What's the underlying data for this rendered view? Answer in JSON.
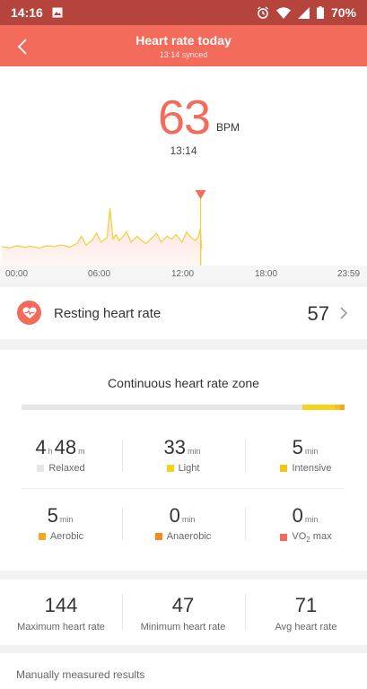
{
  "status_bar": {
    "time": "14:16",
    "battery": "70%"
  },
  "header": {
    "title": "Heart rate today",
    "subtitle": "13:14 synced"
  },
  "current": {
    "value": "63",
    "unit": "BPM",
    "time": "13:14"
  },
  "chart_data": {
    "type": "line",
    "x_ticks": [
      "00:00",
      "06:00",
      "12:00",
      "18:00",
      "23:59"
    ],
    "xlabel": "",
    "ylabel": "",
    "x_unit": "hours",
    "xlim": [
      0,
      24
    ],
    "ylim": [
      40,
      150
    ],
    "series": [
      {
        "x": [
          0,
          0.5,
          1.0,
          1.5,
          2.0,
          2.5,
          3.0,
          3.5,
          4.0,
          4.5,
          5.0,
          5.3,
          5.6,
          6.0,
          6.3,
          6.6,
          7.0,
          7.2,
          7.4,
          7.6,
          7.8,
          8.0,
          8.3,
          8.6,
          9.0,
          9.3,
          9.6,
          10.0,
          10.3,
          10.6,
          11.0,
          11.3,
          11.6,
          12.0,
          12.3,
          12.6,
          12.9,
          13.1,
          13.2,
          13.3
        ],
        "y": [
          66,
          64,
          67,
          65,
          66,
          64,
          67,
          66,
          68,
          65,
          70,
          80,
          68,
          74,
          84,
          72,
          78,
          118,
          76,
          82,
          74,
          78,
          86,
          72,
          80,
          74,
          70,
          78,
          84,
          72,
          80,
          76,
          82,
          72,
          86,
          78,
          74,
          80,
          90,
          63
        ]
      }
    ],
    "marker_time": 13.23
  },
  "resting": {
    "label": "Resting heart rate",
    "value": "57"
  },
  "zone": {
    "title": "Continuous heart rate zone",
    "relaxed": {
      "h": "4",
      "h_unit": "h",
      "m": "48",
      "m_unit": "m",
      "label": "Relaxed",
      "color": "#e6e6e6"
    },
    "light": {
      "value": "33",
      "unit": "min",
      "label": "Light",
      "color": "#f5d21b"
    },
    "intensive": {
      "value": "5",
      "unit": "min",
      "label": "Intensive",
      "color": "#f1c31b"
    },
    "aerobic": {
      "value": "5",
      "unit": "min",
      "label": "Aerobic",
      "color": "#f5a623"
    },
    "anaerobic": {
      "value": "0",
      "unit": "min",
      "label": "Anaerobic",
      "color": "#f5891f"
    },
    "vo2": {
      "value": "0",
      "unit": "min",
      "label_a": "VO",
      "label_sub": "2",
      "label_b": " max",
      "color": "#f26b5b"
    },
    "bar": {
      "relaxed_min": 288,
      "light_min": 33,
      "intensive_min": 5,
      "aerobic_min": 5,
      "anaerobic_min": 0,
      "vo2_min": 0
    }
  },
  "stats": [
    {
      "value": "144",
      "label": "Maximum heart rate"
    },
    {
      "value": "47",
      "label": "Minimum heart rate"
    },
    {
      "value": "71",
      "label": "Avg heart rate"
    }
  ],
  "manual": {
    "label": "Manually measured results"
  },
  "colors": {
    "accent": "#f26b5b",
    "status_bar": "#b5443c",
    "line": "#f2cf3a"
  }
}
